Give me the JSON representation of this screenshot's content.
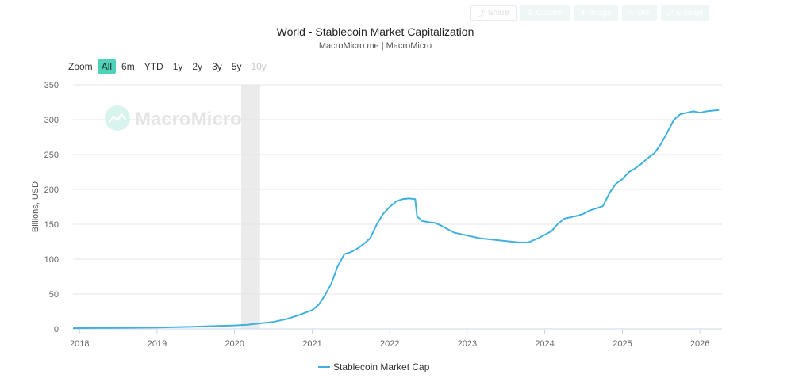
{
  "toolbar": {
    "share": {
      "label": "Share",
      "icon": "share-icon"
    },
    "custom": {
      "label": "Custom",
      "icon": "gear-icon"
    },
    "image": {
      "label": "Image",
      "icon": "download-icon"
    },
    "diy": {
      "label": "DIY",
      "icon": "pencil-icon"
    },
    "enlarge": {
      "label": "Enlarge",
      "icon": "expand-icon"
    }
  },
  "zoom": {
    "label": "Zoom",
    "options": [
      "All",
      "6m",
      "YTD",
      "1y",
      "2y",
      "3y",
      "5y",
      "10y"
    ],
    "active": "All",
    "disabled": [
      "10y"
    ]
  },
  "watermark": "MacroMicro",
  "colors": {
    "line": "#3fb1dc",
    "active_zoom": "#4fd3b8",
    "shade": "#ebebeb"
  },
  "chart_data": {
    "type": "line",
    "title": "World - Stablecoin Market Capitalization",
    "subtitle": "MacroMicro.me | MacroMicro",
    "ylabel": "Billions, USD",
    "xlabel": "",
    "ylim": [
      0,
      350
    ],
    "yticks": [
      0,
      50,
      100,
      150,
      200,
      250,
      300,
      350
    ],
    "xticks": [
      "2018",
      "2019",
      "2020",
      "2021",
      "2022",
      "2023",
      "2024",
      "2025",
      "2026"
    ],
    "xlim": [
      "2017-12-01",
      "2026-04-15"
    ],
    "grid": true,
    "legend_position": "bottom-center",
    "shaded_period": [
      "2020-02-01",
      "2020-04-30"
    ],
    "series": [
      {
        "name": "Stablecoin Market Cap",
        "x": [
          "2017-12-01",
          "2018-06-01",
          "2019-01-01",
          "2019-06-01",
          "2020-01-01",
          "2020-03-01",
          "2020-05-01",
          "2020-07-01",
          "2020-09-01",
          "2020-11-01",
          "2021-01-01",
          "2021-02-01",
          "2021-03-01",
          "2021-04-01",
          "2021-05-01",
          "2021-06-01",
          "2021-07-01",
          "2021-08-01",
          "2021-09-01",
          "2021-10-01",
          "2021-11-01",
          "2021-12-01",
          "2022-01-01",
          "2022-02-01",
          "2022-03-01",
          "2022-04-01",
          "2022-05-01",
          "2022-05-10",
          "2022-05-15",
          "2022-06-01",
          "2022-07-01",
          "2022-08-01",
          "2022-09-01",
          "2022-10-01",
          "2022-11-01",
          "2022-12-01",
          "2023-01-01",
          "2023-03-01",
          "2023-05-01",
          "2023-07-01",
          "2023-09-01",
          "2023-10-15",
          "2023-11-01",
          "2023-12-01",
          "2024-01-01",
          "2024-02-01",
          "2024-03-01",
          "2024-04-01",
          "2024-05-01",
          "2024-06-01",
          "2024-07-01",
          "2024-08-01",
          "2024-09-01",
          "2024-10-01",
          "2024-11-01",
          "2024-12-01",
          "2025-01-01",
          "2025-02-01",
          "2025-03-01",
          "2025-04-01",
          "2025-05-01",
          "2025-06-01",
          "2025-07-01",
          "2025-08-01",
          "2025-09-01",
          "2025-10-01",
          "2025-11-01",
          "2025-12-01",
          "2026-01-01",
          "2026-02-01",
          "2026-03-01",
          "2026-04-01"
        ],
        "values": [
          1,
          1.5,
          2,
          3,
          5,
          6,
          8,
          10,
          14,
          20,
          27,
          35,
          48,
          65,
          90,
          107,
          110,
          115,
          122,
          130,
          150,
          165,
          175,
          183,
          186,
          187,
          186,
          160,
          160,
          155,
          153,
          152,
          148,
          143,
          138,
          136,
          134,
          130,
          128,
          126,
          124,
          124,
          126,
          130,
          135,
          140,
          150,
          158,
          160,
          162,
          165,
          170,
          173,
          176,
          195,
          208,
          215,
          225,
          230,
          237,
          245,
          252,
          265,
          282,
          300,
          308,
          310,
          312,
          310,
          312,
          313,
          314
        ]
      }
    ]
  }
}
